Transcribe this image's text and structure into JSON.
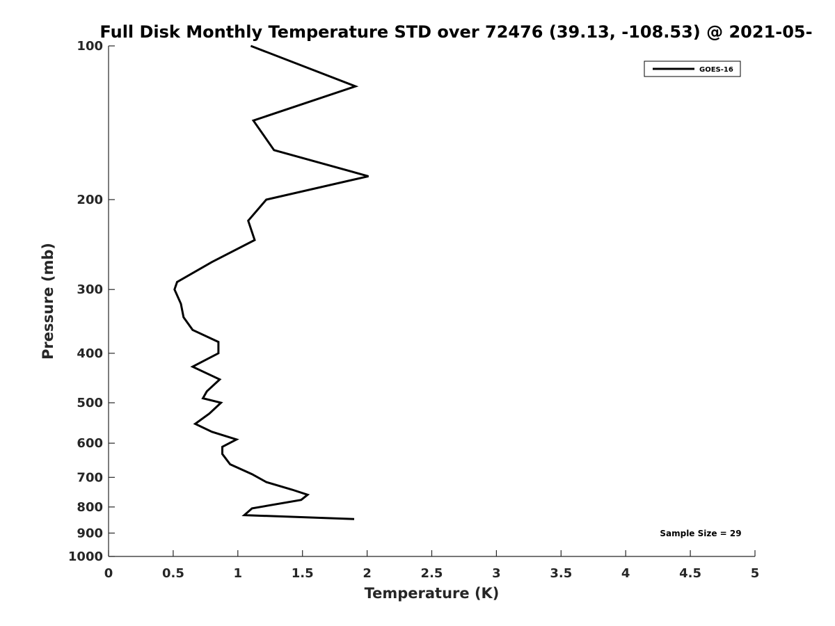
{
  "chart_data": {
    "type": "line",
    "title": "Full Disk Monthly Temperature STD over 72476 (39.13, -108.53) @ 2021-05-",
    "xlabel": "Temperature (K)",
    "ylabel": "Pressure (mb)",
    "xlim": [
      0,
      5
    ],
    "ylim": [
      100,
      1000
    ],
    "y_scale": "log",
    "y_direction": "reversed",
    "x_ticks": [
      0,
      0.5,
      1,
      1.5,
      2,
      2.5,
      3,
      3.5,
      4,
      4.5,
      5
    ],
    "x_tick_labels": [
      "0",
      "0.5",
      "1",
      "1.5",
      "2",
      "2.5",
      "3",
      "3.5",
      "4",
      "4.5",
      "5"
    ],
    "y_ticks": [
      100,
      200,
      300,
      400,
      500,
      600,
      700,
      800,
      900,
      1000
    ],
    "y_tick_labels": [
      "100",
      "200",
      "300",
      "400",
      "500",
      "600",
      "700",
      "800",
      "900",
      "1000"
    ],
    "grid": false,
    "legend": {
      "placement": "top-right",
      "entries": [
        "GOES-16"
      ]
    },
    "annotation": "Sample Size = 29",
    "series": [
      {
        "name": "GOES-16",
        "color": "#000000",
        "points": [
          [
            1.1,
            100
          ],
          [
            1.91,
            120
          ],
          [
            1.12,
            140
          ],
          [
            1.28,
            160
          ],
          [
            2.01,
            180
          ],
          [
            1.22,
            200
          ],
          [
            1.08,
            220
          ],
          [
            1.13,
            240
          ],
          [
            0.8,
            265
          ],
          [
            0.53,
            290
          ],
          [
            0.51,
            300
          ],
          [
            0.56,
            320
          ],
          [
            0.58,
            340
          ],
          [
            0.65,
            360
          ],
          [
            0.85,
            380
          ],
          [
            0.85,
            400
          ],
          [
            0.65,
            425
          ],
          [
            0.86,
            450
          ],
          [
            0.76,
            475
          ],
          [
            0.73,
            490
          ],
          [
            0.87,
            500
          ],
          [
            0.78,
            525
          ],
          [
            0.67,
            550
          ],
          [
            0.8,
            570
          ],
          [
            0.99,
            590
          ],
          [
            0.88,
            610
          ],
          [
            0.88,
            630
          ],
          [
            0.94,
            660
          ],
          [
            1.11,
            690
          ],
          [
            1.22,
            715
          ],
          [
            1.42,
            740
          ],
          [
            1.54,
            757
          ],
          [
            1.49,
            775
          ],
          [
            1.11,
            805
          ],
          [
            1.05,
            830
          ],
          [
            1.9,
            845
          ]
        ]
      }
    ]
  }
}
